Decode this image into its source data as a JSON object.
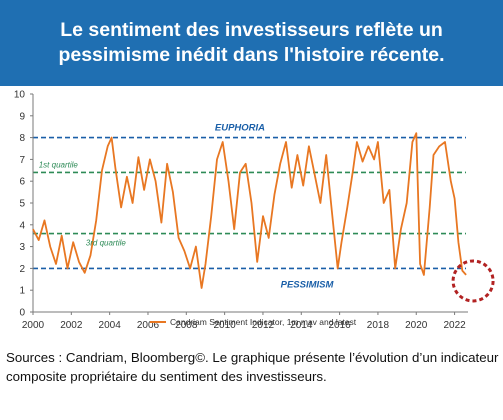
{
  "header": {
    "title": "Le sentiment des investisseurs reflète un pessimisme inédit dans l'histoire récente."
  },
  "caption": {
    "text": "Sources : Candriam, Bloomberg©. Le graphique présente l’évolution d’un indicateur composite propriétaire du sentiment des investisseurs."
  },
  "colors": {
    "header_bg": "#1f6fb2",
    "line": "#e87722",
    "blue_dash": "#1a5fa8",
    "green_dash": "#2e8b57",
    "circle": "#b22222"
  },
  "chart_data": {
    "type": "line",
    "xlim": [
      2000,
      2022.7
    ],
    "ylim": [
      0,
      10
    ],
    "x_ticks": [
      "2000",
      "2002",
      "2004",
      "2006",
      "2008",
      "2010",
      "2012",
      "2014",
      "2016",
      "2018",
      "2020",
      "2022"
    ],
    "y_ticks": [
      "0",
      "1",
      "2",
      "3",
      "4",
      "5",
      "6",
      "7",
      "8",
      "9",
      "10"
    ],
    "reference_lines": [
      {
        "label": "EUPHORIA",
        "y": 8.0,
        "color": "#1a5fa8",
        "style": "dashed"
      },
      {
        "label": "1st quartile",
        "y": 6.4,
        "color": "#2e8b57",
        "style": "dashed"
      },
      {
        "label": "3rd quartile",
        "y": 3.6,
        "color": "#2e8b57",
        "style": "dashed"
      },
      {
        "label": "PESSIMISM",
        "y": 2.0,
        "color": "#1a5fa8",
        "style": "dashed"
      }
    ],
    "legend": {
      "label": "Candriam Sentiment Indicator, 1m mav and latest",
      "position": "bottom-center"
    },
    "highlight": {
      "x": 2022.6,
      "y": 1.7,
      "shape": "dashed-circle"
    },
    "series": [
      {
        "name": "Candriam Sentiment Indicator, 1m mav and latest",
        "points": [
          [
            2000.0,
            3.8
          ],
          [
            2000.3,
            3.3
          ],
          [
            2000.6,
            4.2
          ],
          [
            2000.9,
            3.0
          ],
          [
            2001.2,
            2.2
          ],
          [
            2001.5,
            3.5
          ],
          [
            2001.8,
            2.0
          ],
          [
            2002.1,
            3.2
          ],
          [
            2002.4,
            2.3
          ],
          [
            2002.7,
            1.8
          ],
          [
            2003.0,
            2.6
          ],
          [
            2003.3,
            4.2
          ],
          [
            2003.6,
            6.5
          ],
          [
            2003.9,
            7.6
          ],
          [
            2004.1,
            8.0
          ],
          [
            2004.3,
            6.6
          ],
          [
            2004.6,
            4.8
          ],
          [
            2004.9,
            6.2
          ],
          [
            2005.2,
            5.0
          ],
          [
            2005.5,
            7.1
          ],
          [
            2005.8,
            5.6
          ],
          [
            2006.1,
            7.0
          ],
          [
            2006.4,
            6.0
          ],
          [
            2006.7,
            4.1
          ],
          [
            2007.0,
            6.8
          ],
          [
            2007.3,
            5.5
          ],
          [
            2007.6,
            3.4
          ],
          [
            2007.9,
            2.8
          ],
          [
            2008.2,
            2.0
          ],
          [
            2008.5,
            3.0
          ],
          [
            2008.8,
            1.1
          ],
          [
            2009.0,
            2.2
          ],
          [
            2009.3,
            4.4
          ],
          [
            2009.6,
            7.0
          ],
          [
            2009.9,
            7.8
          ],
          [
            2010.2,
            6.0
          ],
          [
            2010.5,
            3.8
          ],
          [
            2010.8,
            6.4
          ],
          [
            2011.1,
            6.8
          ],
          [
            2011.4,
            5.0
          ],
          [
            2011.7,
            2.3
          ],
          [
            2012.0,
            4.4
          ],
          [
            2012.3,
            3.4
          ],
          [
            2012.6,
            5.4
          ],
          [
            2012.9,
            6.8
          ],
          [
            2013.2,
            7.8
          ],
          [
            2013.5,
            5.7
          ],
          [
            2013.8,
            7.2
          ],
          [
            2014.1,
            5.8
          ],
          [
            2014.4,
            7.6
          ],
          [
            2014.7,
            6.3
          ],
          [
            2015.0,
            5.0
          ],
          [
            2015.3,
            7.2
          ],
          [
            2015.6,
            4.6
          ],
          [
            2015.9,
            2.0
          ],
          [
            2016.1,
            3.2
          ],
          [
            2016.4,
            4.8
          ],
          [
            2016.7,
            6.5
          ],
          [
            2016.9,
            7.8
          ],
          [
            2017.2,
            6.9
          ],
          [
            2017.5,
            7.6
          ],
          [
            2017.8,
            7.0
          ],
          [
            2018.0,
            7.8
          ],
          [
            2018.3,
            5.0
          ],
          [
            2018.6,
            5.6
          ],
          [
            2018.9,
            2.0
          ],
          [
            2019.2,
            3.8
          ],
          [
            2019.5,
            5.0
          ],
          [
            2019.8,
            7.8
          ],
          [
            2020.0,
            8.2
          ],
          [
            2020.2,
            2.2
          ],
          [
            2020.4,
            1.7
          ],
          [
            2020.7,
            4.8
          ],
          [
            2020.9,
            7.2
          ],
          [
            2021.2,
            7.6
          ],
          [
            2021.5,
            7.8
          ],
          [
            2021.8,
            6.0
          ],
          [
            2022.0,
            5.2
          ],
          [
            2022.2,
            3.2
          ],
          [
            2022.4,
            1.9
          ],
          [
            2022.6,
            1.7
          ]
        ]
      }
    ]
  }
}
